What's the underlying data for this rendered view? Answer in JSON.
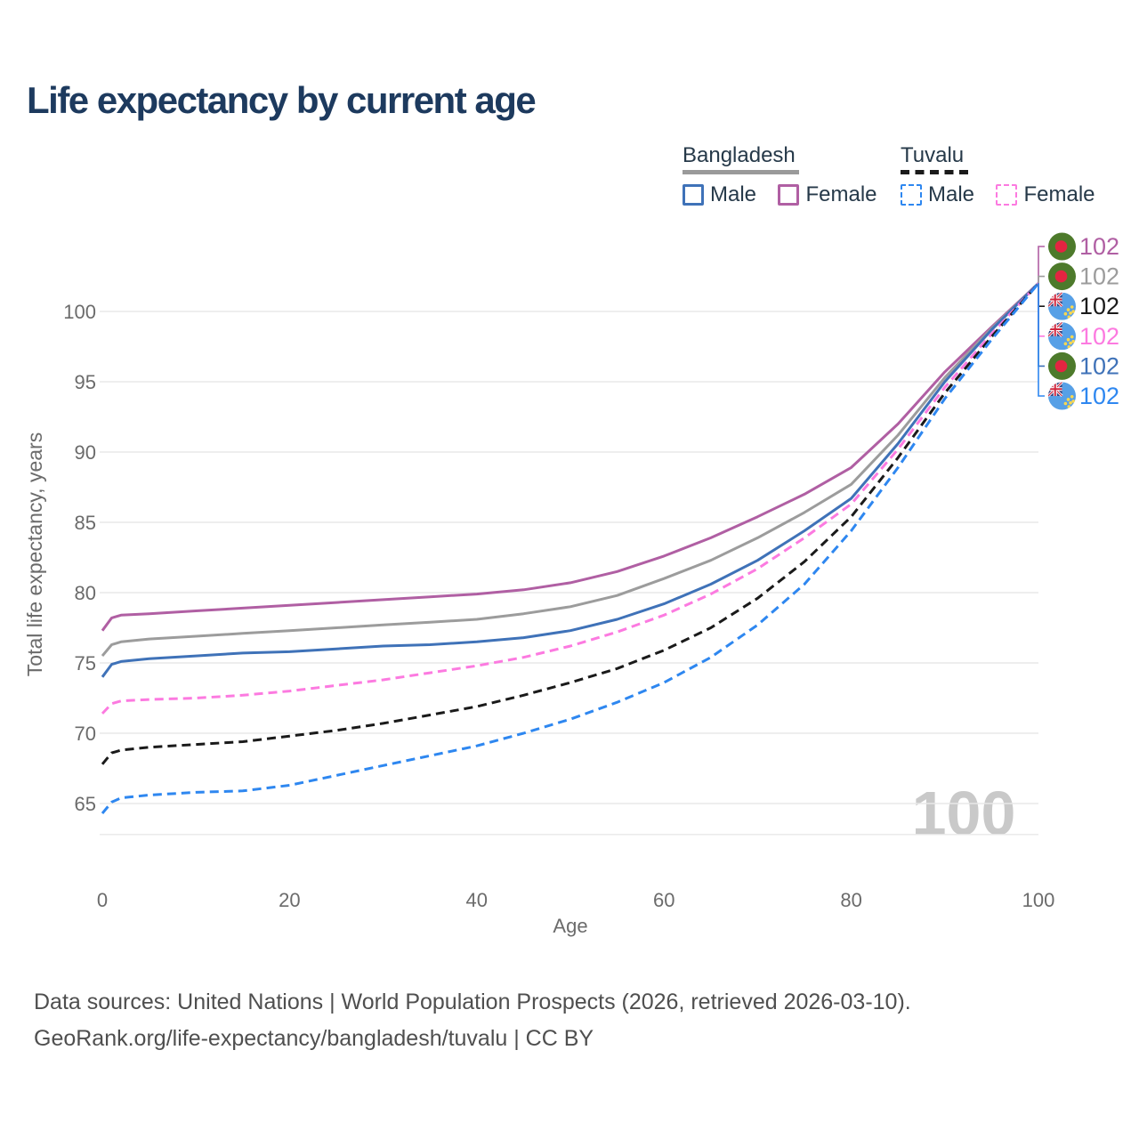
{
  "title": "Life expectancy by current age",
  "legend": {
    "groups": [
      {
        "name": "Bangladesh",
        "line_style": "solid",
        "underline_color": "#9a9a9a",
        "items": [
          {
            "label": "Male",
            "series": "bd-male"
          },
          {
            "label": "Female",
            "series": "bd-female"
          }
        ]
      },
      {
        "name": "Tuvalu",
        "line_style": "dashed",
        "underline_color": "#1a1a1a",
        "items": [
          {
            "label": "Male",
            "series": "tv-male"
          },
          {
            "label": "Female",
            "series": "tv-female"
          }
        ]
      }
    ]
  },
  "watermark": "100",
  "footer": {
    "line1": "Data sources: United Nations | World Population Prospects (2026, retrieved 2026-03-10).",
    "line2": "GeoRank.org/life-expectancy/bangladesh/tuvalu | CC BY"
  },
  "colors": {
    "title_text": "#1d3a5e",
    "legend_text": "#263949",
    "axis_text": "#6b6b6b",
    "footer_text": "#4f4f4f",
    "grid": "#e8e8e8",
    "watermark": "#c9c9c9"
  },
  "chart_data": {
    "type": "line",
    "title": "Life expectancy by current age",
    "xlabel": "Age",
    "ylabel": "Total life expectancy, years",
    "xlim": [
      0,
      100
    ],
    "ylim": [
      62.8,
      104.2
    ],
    "xticks": [
      0,
      20,
      40,
      60,
      80,
      100
    ],
    "yticks": [
      65,
      70,
      75,
      80,
      85,
      90,
      95,
      100
    ],
    "grid": true,
    "legend_position": "top-right",
    "ages": [
      0,
      1,
      2,
      5,
      10,
      15,
      20,
      25,
      30,
      35,
      40,
      45,
      50,
      55,
      60,
      65,
      70,
      75,
      80,
      85,
      90,
      95,
      100
    ],
    "series": [
      {
        "id": "bd-female",
        "name": "Bangladesh Female",
        "country": "Bangladesh",
        "sex": "Female",
        "flag": "bangladesh",
        "color": "#b05fa3",
        "dashed": false,
        "end_label": "102",
        "values": [
          77.3,
          78.2,
          78.4,
          78.5,
          78.7,
          78.9,
          79.1,
          79.3,
          79.5,
          79.7,
          79.9,
          80.2,
          80.7,
          81.5,
          82.6,
          83.9,
          85.4,
          87.0,
          88.9,
          92.0,
          95.7,
          98.9,
          102
        ]
      },
      {
        "id": "bd-all",
        "name": "Bangladesh Both sexes",
        "country": "Bangladesh",
        "sex": "Both",
        "flag": "bangladesh",
        "color": "#9c9c9c",
        "dashed": false,
        "end_label": "102",
        "values": [
          75.5,
          76.3,
          76.5,
          76.7,
          76.9,
          77.1,
          77.3,
          77.5,
          77.7,
          77.9,
          78.1,
          78.5,
          79.0,
          79.8,
          81.0,
          82.3,
          83.9,
          85.7,
          87.7,
          91.2,
          95.3,
          98.8,
          102
        ]
      },
      {
        "id": "bd-male",
        "name": "Bangladesh Male",
        "country": "Bangladesh",
        "sex": "Male",
        "flag": "bangladesh",
        "color": "#3f72b8",
        "dashed": false,
        "end_label": "102",
        "values": [
          74.0,
          74.9,
          75.1,
          75.3,
          75.5,
          75.7,
          75.8,
          76.0,
          76.2,
          76.3,
          76.5,
          76.8,
          77.3,
          78.1,
          79.2,
          80.6,
          82.3,
          84.4,
          86.7,
          90.6,
          95.0,
          98.7,
          102
        ]
      },
      {
        "id": "tv-female",
        "name": "Tuvalu Female",
        "country": "Tuvalu",
        "sex": "Female",
        "flag": "tuvalu",
        "color": "#fc7ae0",
        "dashed": true,
        "end_label": "102",
        "values": [
          71.4,
          72.1,
          72.3,
          72.4,
          72.5,
          72.7,
          73.0,
          73.4,
          73.8,
          74.3,
          74.8,
          75.4,
          76.2,
          77.2,
          78.4,
          79.9,
          81.7,
          83.9,
          86.3,
          90.2,
          94.6,
          98.4,
          102
        ]
      },
      {
        "id": "tv-all",
        "name": "Tuvalu Both sexes",
        "country": "Tuvalu",
        "sex": "Both",
        "flag": "tuvalu",
        "color": "#1a1a1a",
        "dashed": true,
        "end_label": "102",
        "values": [
          67.8,
          68.6,
          68.8,
          69.0,
          69.2,
          69.4,
          69.8,
          70.2,
          70.7,
          71.3,
          71.9,
          72.7,
          73.6,
          74.6,
          75.9,
          77.5,
          79.6,
          82.2,
          85.4,
          89.6,
          94.2,
          98.2,
          102
        ]
      },
      {
        "id": "tv-male",
        "name": "Tuvalu Male",
        "country": "Tuvalu",
        "sex": "Male",
        "flag": "tuvalu",
        "color": "#2e87f0",
        "dashed": true,
        "end_label": "102",
        "values": [
          64.3,
          65.1,
          65.4,
          65.6,
          65.8,
          65.9,
          66.3,
          67.0,
          67.7,
          68.4,
          69.1,
          70.0,
          71.0,
          72.2,
          73.6,
          75.4,
          77.7,
          80.6,
          84.4,
          88.9,
          93.8,
          98.0,
          102
        ]
      }
    ],
    "end_labels_order": [
      "bd-female",
      "bd-all",
      "tv-all",
      "tv-female",
      "bd-male",
      "tv-male"
    ]
  }
}
